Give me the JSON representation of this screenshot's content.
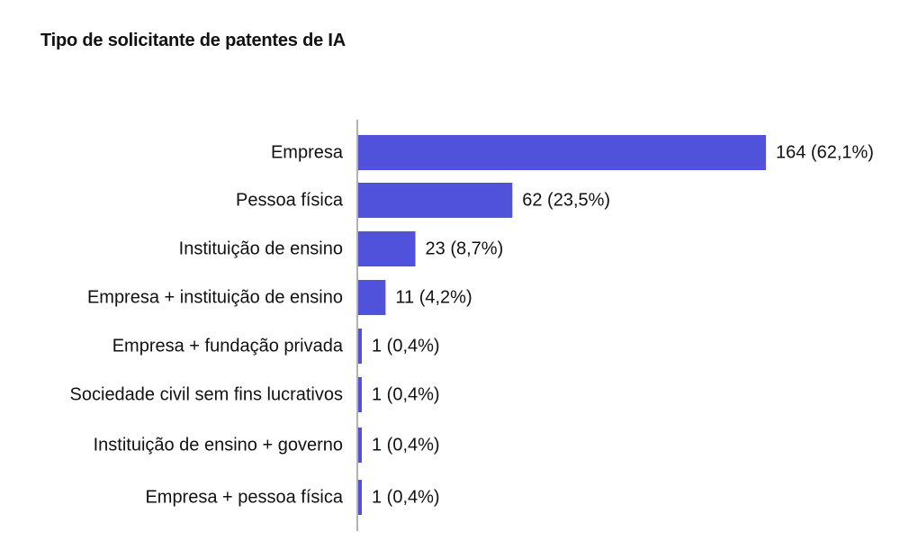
{
  "chart_data": {
    "type": "bar",
    "orientation": "horizontal",
    "title": "Tipo de solicitante de patentes de IA",
    "categories": [
      "Empresa",
      "Pessoa física",
      "Instituição de ensino",
      "Empresa + instituição de ensino",
      "Empresa + fundação privada",
      "Sociedade civil sem fins lucrativos",
      "Instituição de ensino + governo",
      "Empresa + pessoa física"
    ],
    "values": [
      164,
      62,
      23,
      11,
      1,
      1,
      1,
      1
    ],
    "data_labels": [
      "164 (62,1%)",
      "62 (23,5%)",
      "23 (8,7%)",
      "11 (4,2%)",
      "1 (0,4%)",
      "1 (0,4%)",
      "1 (0,4%)",
      "1 (0,4%)"
    ],
    "xlim": [
      0,
      164
    ],
    "grid": false,
    "legend": "none",
    "bar_color": "#5052DC",
    "axis_color": "#7f7f7f",
    "text_color": "#111111"
  }
}
